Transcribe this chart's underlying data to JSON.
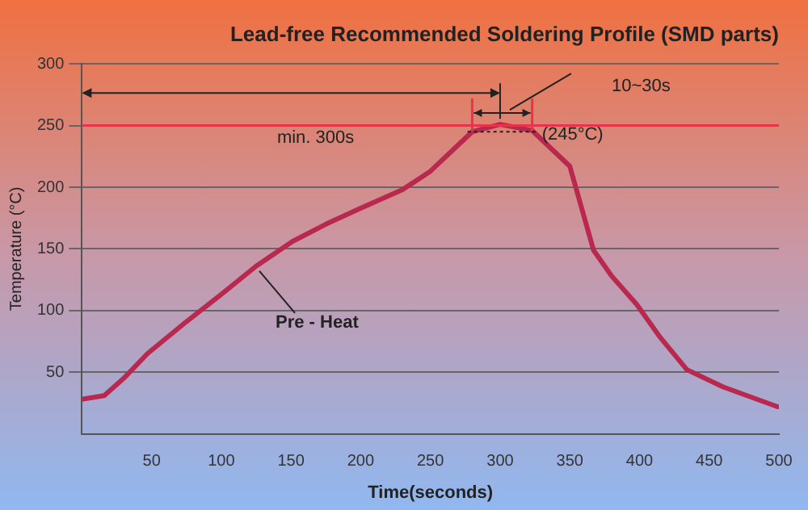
{
  "chart_data": {
    "type": "line",
    "title": "Lead-free Recommended Soldering Profile (SMD parts)",
    "xlabel": "Time(seconds)",
    "ylabel": "Temperature (°C)",
    "x": [
      0,
      16,
      30,
      47,
      75,
      101,
      125,
      151,
      175,
      200,
      230,
      250,
      280,
      300,
      323,
      350,
      367,
      380,
      398,
      415,
      434,
      460,
      499
    ],
    "series": [
      {
        "color": "#b8284f",
        "values": [
          28,
          31,
          45,
          65,
          91,
          114,
          136,
          156,
          170,
          183,
          198,
          213,
          245,
          251,
          246,
          217,
          149,
          128,
          105,
          78,
          52,
          38,
          22
        ]
      }
    ],
    "xlim": [
      0,
      500
    ],
    "ylim": [
      0,
      300
    ],
    "xticks": [
      50,
      100,
      150,
      200,
      250,
      300,
      350,
      400,
      450,
      500
    ],
    "yticks": [
      50,
      100,
      150,
      200,
      250,
      300
    ],
    "grid": "y",
    "legend": false,
    "marker": "none",
    "line_style": "solid",
    "ref_lines": [
      {
        "axis": "y",
        "value": 250,
        "color": "#e8334a"
      }
    ],
    "annotations": [
      "min. 300s",
      "10~30s",
      {
        "text": "(245°C)",
        "x": 323,
        "y": 245
      },
      {
        "text": "Pre - Heat",
        "x": 125,
        "y": 136
      }
    ]
  }
}
